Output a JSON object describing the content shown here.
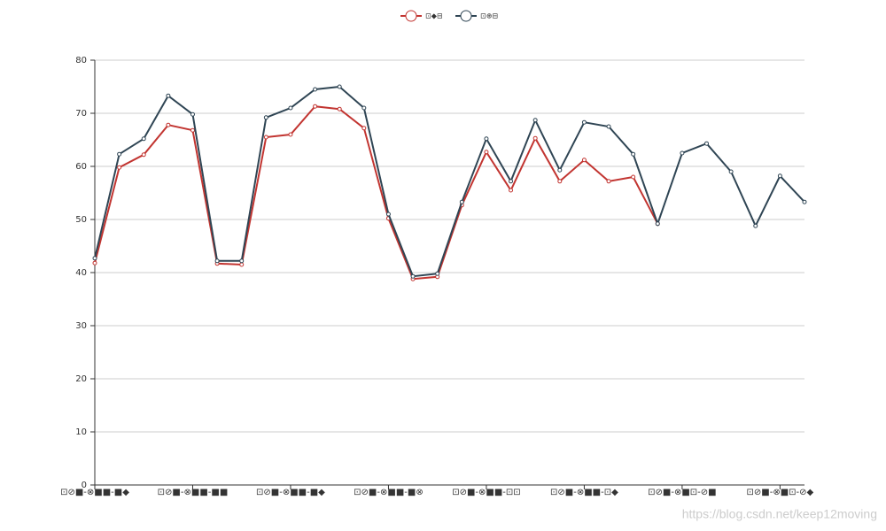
{
  "chart_data": {
    "type": "line",
    "categories": [
      "⊡⊘■-⊗■■-■◆",
      null,
      null,
      null,
      "⊡⊘■-⊗■■-■■",
      null,
      null,
      null,
      "⊡⊘■-⊗■■-■◆",
      null,
      null,
      null,
      "⊡⊘■-⊗■■-■⊗",
      null,
      null,
      null,
      "⊡⊘■-⊗■■-⊡⊡",
      null,
      null,
      null,
      "⊡⊘■-⊗■■-⊡◆",
      null,
      null,
      null,
      "⊡⊘■-⊗■⊡-⊘■",
      null,
      null,
      null,
      "⊡⊘■-⊗■⊡-⊘◆",
      null
    ],
    "series": [
      {
        "name": "⊡◆⊟",
        "color": "#c23531",
        "values": [
          41.8,
          59.8,
          62.2,
          67.8,
          66.8,
          41.7,
          41.5,
          65.5,
          66,
          71.3,
          70.8,
          67.2,
          50.2,
          38.8,
          39.2,
          52.7,
          62.7,
          55.5,
          65.3,
          57.2,
          61.2,
          57.2,
          58,
          49.2,
          null,
          null,
          null,
          null,
          null,
          null
        ]
      },
      {
        "name": "⊡⊕⊟",
        "color": "#2f4554",
        "values": [
          42.7,
          62.3,
          65.2,
          73.3,
          69.8,
          42.2,
          42.2,
          69.2,
          71,
          74.5,
          75,
          71,
          51,
          39.3,
          39.8,
          53.3,
          65.2,
          57.2,
          68.7,
          59.3,
          68.3,
          67.5,
          62.3,
          49.2,
          62.5,
          64.3,
          59,
          48.8,
          58.2,
          53.3
        ]
      }
    ],
    "ylim": [
      0,
      80
    ],
    "yticks": [
      0,
      10,
      20,
      30,
      40,
      50,
      60,
      70,
      80
    ],
    "grid": true,
    "legend": "top",
    "annotation": "https://blog.csdn.net/keep12moving"
  }
}
